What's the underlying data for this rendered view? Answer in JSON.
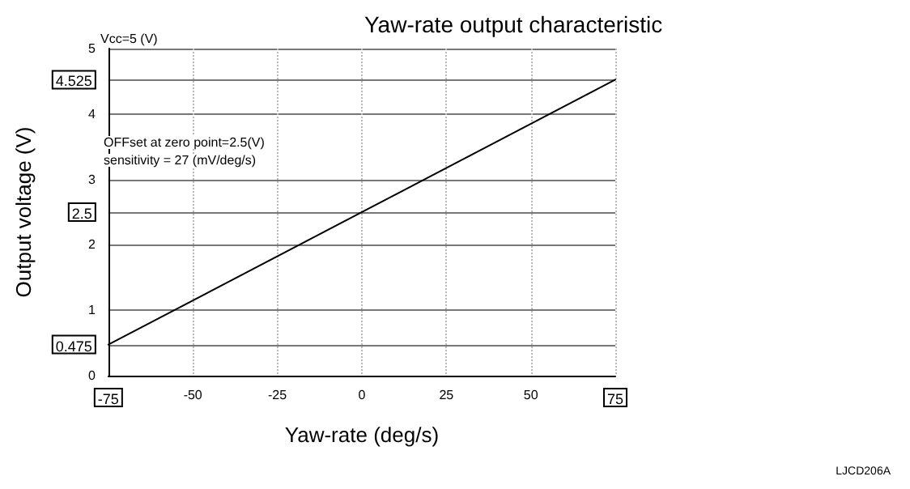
{
  "chart_data": {
    "type": "line",
    "title": "Yaw-rate output characteristic",
    "xlabel": "Yaw-rate (deg/s)",
    "ylabel": "Output voltage (V)",
    "series": [
      {
        "color": "#000000",
        "x": [
          -75,
          75
        ],
        "values": [
          0.475,
          4.525
        ]
      }
    ],
    "xlim": [
      -75,
      75
    ],
    "xticks": [
      -75,
      -50,
      -25,
      0,
      25,
      50,
      75
    ],
    "ylim": [
      0,
      5
    ],
    "yticks": [
      0,
      0.475,
      1,
      2,
      2.5,
      3,
      4,
      4.525,
      5
    ],
    "grid": true,
    "marker": "none",
    "line_style": "solid",
    "annotations": [
      "Vcc=5 (V)",
      "OFFset at zero point=2.5(V)",
      "sensitivity = 27 (mV/deg/s)",
      "LJCD206A"
    ]
  }
}
